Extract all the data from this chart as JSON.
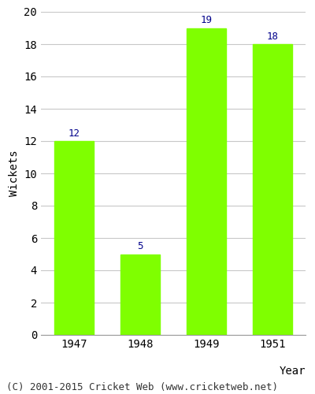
{
  "categories": [
    "1947",
    "1948",
    "1949",
    "1951"
  ],
  "values": [
    12,
    5,
    19,
    18
  ],
  "bar_color": "#7FFF00",
  "bar_edge_color": "#7FFF00",
  "label_color": "#00008B",
  "xlabel": "Year",
  "ylabel": "Wickets",
  "ylim": [
    0,
    20
  ],
  "yticks": [
    0,
    2,
    4,
    6,
    8,
    10,
    12,
    14,
    16,
    18,
    20
  ],
  "grid_color": "#c8c8c8",
  "background_color": "#ffffff",
  "footer_text": "(C) 2001-2015 Cricket Web (www.cricketweb.net)",
  "label_fontsize": 9,
  "axis_tick_fontsize": 10,
  "axis_label_fontsize": 10,
  "footer_fontsize": 9
}
